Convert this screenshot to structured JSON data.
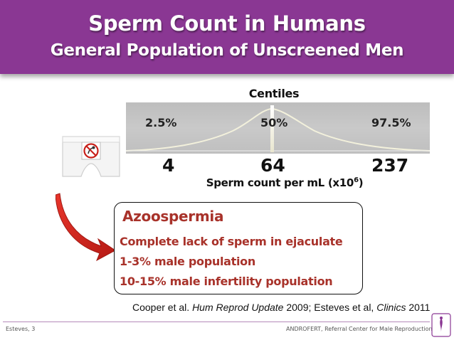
{
  "header": {
    "title": "Sperm Count in Humans",
    "subtitle": "General Population of Unscreened Men"
  },
  "centiles": {
    "title": "Centiles",
    "labels": [
      "2.5%",
      "50%",
      "97.5%"
    ],
    "values": [
      "4",
      "64",
      "237"
    ],
    "axis_label": "Sperm count per mL (x10",
    "axis_exponent": "6",
    "axis_label_end": ")"
  },
  "info": {
    "title": "Azoospermia",
    "lines": [
      "Complete lack of sperm in ejaculate",
      "1-3% male population",
      "10-15% male infertility population"
    ]
  },
  "citation": {
    "part1": "Cooper et al. ",
    "journal1": "Hum Reprod Update",
    "part2": " 2009; Esteves et al, ",
    "journal2": "Clinics",
    "part3": " 2011"
  },
  "footer": {
    "left": "Esteves, 3",
    "right": "ANDROFERT, Referral Center for Male Reproduction"
  },
  "colors": {
    "header": "#8a3793",
    "accent_red": "#a8322a",
    "arrow_red": "#d1261e"
  },
  "icons": {
    "underwear": "underwear-icon",
    "prohibition": "no-sperm-sign-icon",
    "arrow": "curved-arrow-icon",
    "logo": "androfert-logo-icon"
  }
}
